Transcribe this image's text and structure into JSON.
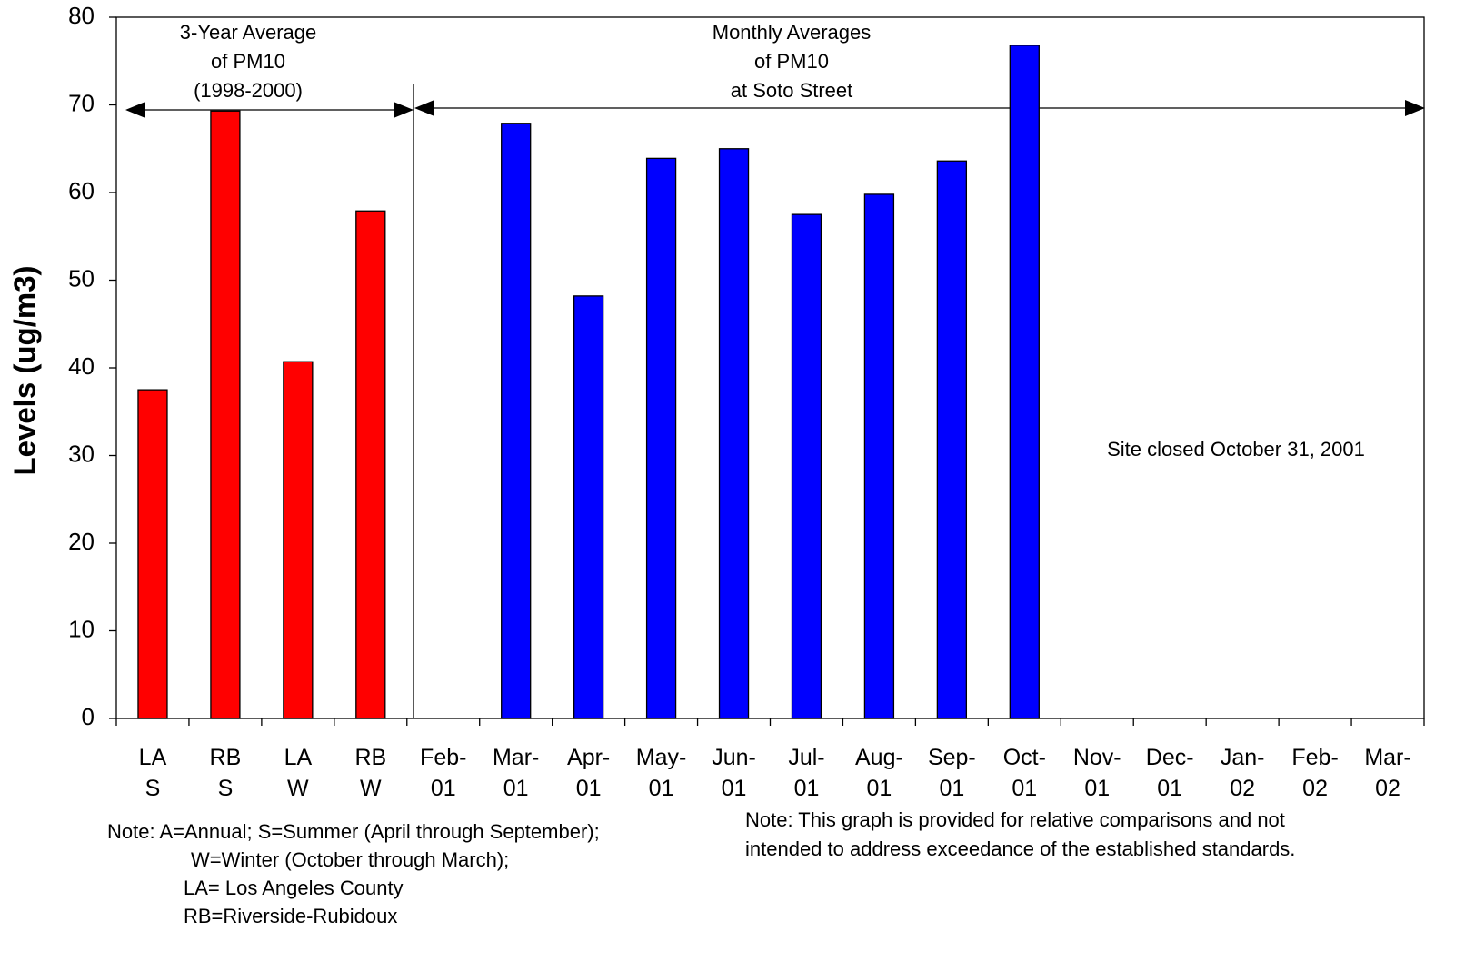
{
  "chart_data": {
    "type": "bar",
    "y_label": "Levels (ug/m3)",
    "categories": [
      [
        "LA",
        "S"
      ],
      [
        "RB",
        "S"
      ],
      [
        "LA",
        "W"
      ],
      [
        "RB",
        "W"
      ],
      [
        "Feb-",
        "01"
      ],
      [
        "Mar-",
        "01"
      ],
      [
        "Apr-",
        "01"
      ],
      [
        "May-",
        "01"
      ],
      [
        "Jun-",
        "01"
      ],
      [
        "Jul-",
        "01"
      ],
      [
        "Aug-",
        "01"
      ],
      [
        "Sep-",
        "01"
      ],
      [
        "Oct-",
        "01"
      ],
      [
        "Nov-",
        "01"
      ],
      [
        "Dec-",
        "01"
      ],
      [
        "Jan-",
        "02"
      ],
      [
        "Feb-",
        "02"
      ],
      [
        "Mar-",
        "02"
      ]
    ],
    "values": [
      37.5,
      69.3,
      40.7,
      57.9,
      null,
      67.9,
      48.2,
      63.9,
      65.0,
      57.5,
      59.8,
      63.6,
      76.8,
      null,
      null,
      null,
      null,
      null
    ],
    "colors": [
      "#ff0000",
      "#ff0000",
      "#ff0000",
      "#ff0000",
      "#0000ff",
      "#0000ff",
      "#0000ff",
      "#0000ff",
      "#0000ff",
      "#0000ff",
      "#0000ff",
      "#0000ff",
      "#0000ff",
      "#0000ff",
      "#0000ff",
      "#0000ff",
      "#0000ff",
      "#0000ff"
    ],
    "ylim": [
      0,
      80
    ],
    "yticks": [
      0,
      10,
      20,
      30,
      40,
      50,
      60,
      70,
      80
    ],
    "grid": false,
    "annotations": {
      "three_year": [
        "3-Year Average",
        "of PM10",
        "(1998-2000)"
      ],
      "monthly": [
        "Monthly Averages",
        "of PM10",
        "at Soto Street"
      ],
      "site_closed": "Site closed October 31, 2001",
      "note_left": [
        "Note: A=Annual;  S=Summer (April through September);",
        "W=Winter (October through March);",
        "LA= Los Angeles County",
        "RB=Riverside-Rubidoux"
      ],
      "note_right": [
        "Note: This graph is provided for relative comparisons and not",
        "intended to address exceedance of the established standards."
      ]
    }
  }
}
